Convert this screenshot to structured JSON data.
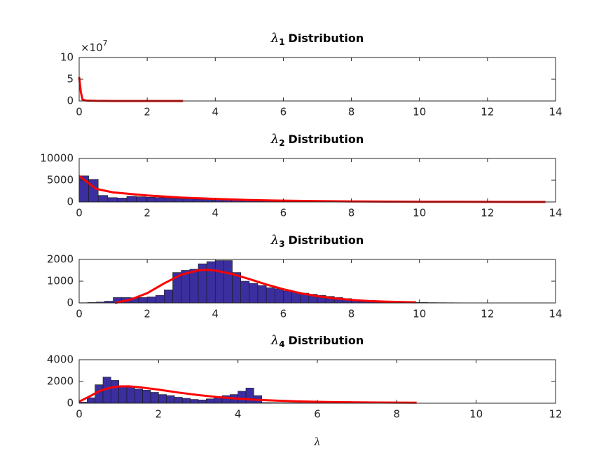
{
  "chart_data": [
    {
      "type": "histogram",
      "title": {
        "main": "λ",
        "sub": "1",
        "rest": "Distribution"
      },
      "xlim": [
        0,
        14
      ],
      "xticks": [
        0,
        2,
        4,
        6,
        8,
        10,
        12,
        14
      ],
      "ylim": [
        0,
        100000000
      ],
      "yticks": [
        {
          "value": 0,
          "label": "0"
        },
        {
          "value": 50000000,
          "label": "5"
        },
        {
          "value": 100000000,
          "label": "10"
        }
      ],
      "y_multiplier": {
        "base": "×10",
        "exponent": "7"
      },
      "bins": [],
      "values": [],
      "color": "#3b2e9e",
      "edgecolor": "#1a1a1a",
      "curve": {
        "x": [
          0,
          0.05,
          0.1,
          0.2,
          0.5,
          1,
          2,
          3.05
        ],
        "y": [
          55000000,
          20000000,
          3000000,
          1000000,
          300000,
          100000,
          30000,
          10000
        ],
        "color": "#ff0000"
      }
    },
    {
      "type": "histogram",
      "title": {
        "main": "λ",
        "sub": "2",
        "rest": "Distribution"
      },
      "xlim": [
        0,
        14
      ],
      "xticks": [
        0,
        2,
        4,
        6,
        8,
        10,
        12,
        14
      ],
      "ylim": [
        0,
        10000
      ],
      "yticks": [
        0,
        5000,
        10000
      ],
      "bins": [
        0,
        0.28,
        0.56,
        0.84,
        1.12,
        1.4,
        1.68,
        1.96,
        2.24,
        2.52,
        2.8,
        3.08,
        3.36,
        3.64,
        3.92,
        4.2,
        4.48,
        4.76,
        5.04,
        5.32,
        5.6,
        5.88,
        6.16,
        6.44,
        6.72,
        7,
        7.28,
        7.56,
        7.84,
        8.12,
        8.4,
        8.68,
        8.96,
        9.24,
        9.52,
        9.8,
        10.08,
        10.36,
        10.64,
        10.92,
        11.2,
        11.48,
        11.76,
        12.04,
        12.32,
        12.6,
        12.88,
        13.16,
        13.44,
        13.72
      ],
      "values": [
        6000,
        5200,
        1500,
        1000,
        900,
        1300,
        1200,
        1100,
        1000,
        900,
        800,
        700,
        650,
        600,
        550,
        500,
        450,
        420,
        400,
        380,
        350,
        330,
        300,
        280,
        260,
        240,
        220,
        200,
        190,
        180,
        170,
        160,
        150,
        140,
        130,
        120,
        110,
        100,
        95,
        90,
        85,
        80,
        75,
        70,
        65,
        60,
        55,
        50,
        45
      ],
      "color": "#3b2e9e",
      "edgecolor": "#1a1a1a",
      "curve": {
        "x": [
          0,
          0.5,
          1,
          2,
          3,
          4,
          5,
          6,
          7,
          8,
          9,
          10,
          11,
          12,
          13,
          13.7
        ],
        "y": [
          6000,
          3000,
          2200,
          1500,
          1000,
          700,
          450,
          300,
          200,
          130,
          80,
          50,
          30,
          20,
          10,
          5
        ],
        "color": "#ff0000"
      }
    },
    {
      "type": "histogram",
      "title": {
        "main": "λ",
        "sub": "3",
        "rest": "Distribution"
      },
      "xlim": [
        0,
        14
      ],
      "xticks": [
        0,
        2,
        4,
        6,
        8,
        10,
        12,
        14
      ],
      "ylim": [
        0,
        2000
      ],
      "yticks": [
        0,
        1000,
        2000
      ],
      "bins": [
        0,
        0.25,
        0.5,
        0.75,
        1,
        1.25,
        1.5,
        1.75,
        2,
        2.25,
        2.5,
        2.75,
        3,
        3.25,
        3.5,
        3.75,
        4,
        4.25,
        4.5,
        4.75,
        5,
        5.25,
        5.5,
        5.75,
        6,
        6.25,
        6.5,
        6.75,
        7,
        7.25,
        7.5,
        7.75,
        8,
        8.25,
        8.5,
        8.75,
        9,
        9.25,
        9.5,
        9.75,
        10,
        10.25,
        10.5,
        10.75,
        11,
        11.25,
        11.5,
        11.75,
        12,
        12.25,
        12.5,
        12.75,
        13,
        13.25
      ],
      "values": [
        10,
        20,
        40,
        80,
        250,
        250,
        240,
        250,
        280,
        350,
        600,
        1400,
        1500,
        1550,
        1800,
        1900,
        1950,
        1950,
        1400,
        1000,
        900,
        800,
        700,
        650,
        550,
        500,
        450,
        400,
        350,
        300,
        250,
        200,
        150,
        100,
        80,
        60,
        50,
        40,
        30,
        25,
        20,
        15,
        12,
        10,
        8,
        6,
        5,
        4,
        3,
        3,
        2,
        2,
        1
      ],
      "color": "#3b2e9e",
      "edgecolor": "#1a1a1a",
      "curve": {
        "x": [
          1.05,
          1.5,
          2,
          2.5,
          3,
          3.5,
          3.75,
          4,
          4.5,
          5,
          5.5,
          6,
          6.5,
          7,
          7.5,
          8,
          8.5,
          9,
          9.5,
          9.9
        ],
        "y": [
          0,
          150,
          450,
          900,
          1300,
          1500,
          1520,
          1490,
          1330,
          1100,
          850,
          630,
          450,
          310,
          210,
          140,
          90,
          60,
          40,
          30
        ],
        "color": "#ff0000"
      }
    },
    {
      "type": "histogram",
      "title": {
        "main": "λ",
        "sub": "4",
        "rest": "Distribution"
      },
      "x_label": "λ",
      "xlim": [
        0,
        12
      ],
      "xticks": [
        0,
        2,
        4,
        6,
        8,
        10,
        12
      ],
      "ylim": [
        0,
        4000
      ],
      "yticks": [
        0,
        2000,
        4000
      ],
      "bins": [
        0,
        0.2,
        0.4,
        0.6,
        0.8,
        1,
        1.2,
        1.4,
        1.6,
        1.8,
        2,
        2.2,
        2.4,
        2.6,
        2.8,
        3,
        3.2,
        3.4,
        3.6,
        3.8,
        4,
        4.2,
        4.4,
        4.6,
        4.8,
        5,
        5.2,
        5.4,
        5.6,
        5.8,
        6,
        6.2,
        6.4,
        6.6,
        6.8,
        7,
        7.2,
        7.4,
        7.6,
        7.8,
        8,
        8.2,
        8.4,
        8.6,
        8.8,
        9,
        9.2,
        9.4,
        9.6,
        9.8,
        10,
        10.2,
        10.4
      ],
      "values": [
        100,
        500,
        1700,
        2400,
        2100,
        1600,
        1500,
        1300,
        1200,
        1000,
        800,
        700,
        550,
        450,
        350,
        300,
        400,
        500,
        700,
        800,
        1100,
        1400,
        700,
        60,
        50,
        45,
        40,
        35,
        30,
        28,
        25,
        22,
        20,
        18,
        16,
        14,
        12,
        10,
        9,
        8,
        7,
        6,
        5,
        5,
        4,
        4,
        3,
        3,
        2,
        2,
        1,
        1
      ],
      "color": "#3b2e9e",
      "edgecolor": "#1a1a1a",
      "curve": {
        "x": [
          0,
          0.25,
          0.5,
          0.75,
          1,
          1.25,
          1.5,
          2,
          2.5,
          3,
          3.5,
          4,
          4.5,
          5,
          5.5,
          6,
          6.5,
          7,
          7.5,
          8,
          8.5
        ],
        "y": [
          150,
          600,
          1100,
          1400,
          1550,
          1560,
          1480,
          1250,
          980,
          750,
          560,
          420,
          310,
          230,
          170,
          130,
          100,
          80,
          65,
          55,
          45
        ],
        "color": "#ff0000"
      }
    }
  ]
}
